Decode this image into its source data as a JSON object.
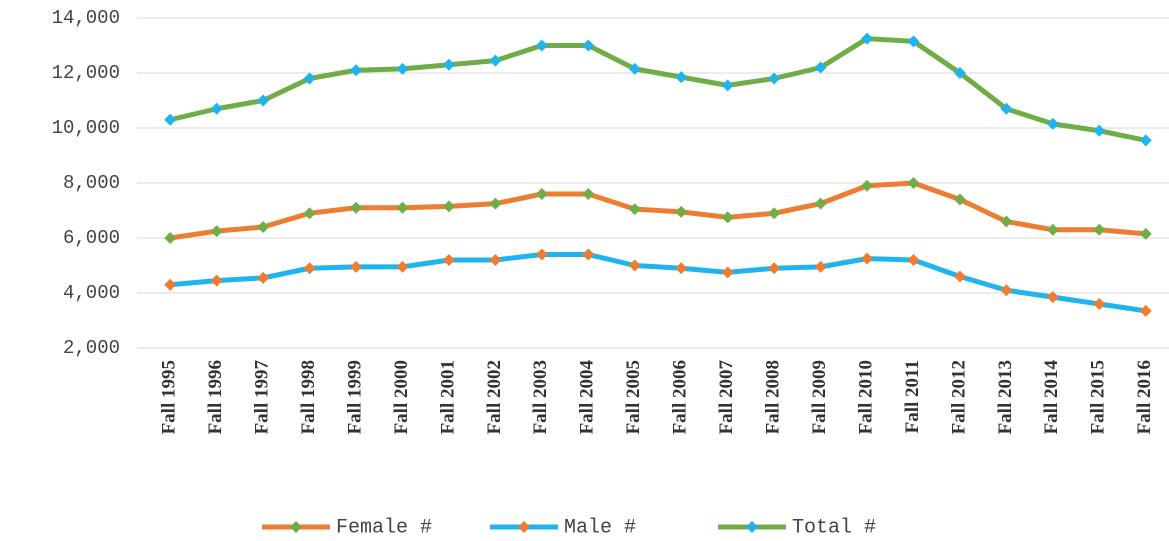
{
  "chart_data": {
    "type": "line",
    "categories": [
      "Fall 1995",
      "Fall 1996",
      "Fall 1997",
      "Fall 1998",
      "Fall 1999",
      "Fall 2000",
      "Fall 2001",
      "Fall 2002",
      "Fall 2003",
      "Fall 2004",
      "Fall 2005",
      "Fall 2006",
      "Fall 2007",
      "Fall 2008",
      "Fall 2009",
      "Fall 2010",
      "Fall 2011",
      "Fall 2012",
      "Fall 2013",
      "Fall 2014",
      "Fall 2015",
      "Fall 2016"
    ],
    "series": [
      {
        "name": "Female #",
        "color": "#ED7D31",
        "marker_color": "#70AD47",
        "values": [
          6000,
          6250,
          6400,
          6900,
          7100,
          7100,
          7150,
          7250,
          7600,
          7600,
          7050,
          6950,
          6750,
          6900,
          7250,
          7900,
          8000,
          7400,
          6600,
          6300,
          6300,
          6150
        ]
      },
      {
        "name": "Male #",
        "color": "#1FB4EE",
        "marker_color": "#ED7D31",
        "values": [
          4300,
          4450,
          4550,
          4900,
          4950,
          4950,
          5200,
          5200,
          5400,
          5400,
          5000,
          4900,
          4750,
          4900,
          4950,
          5250,
          5200,
          4600,
          4100,
          3850,
          3600,
          3350
        ]
      },
      {
        "name": "Total #",
        "color": "#70AD47",
        "marker_color": "#1FB4EE",
        "values": [
          10300,
          10700,
          11000,
          11800,
          12100,
          12150,
          12300,
          12450,
          13000,
          13000,
          12150,
          11850,
          11550,
          11800,
          12200,
          13250,
          13150,
          12000,
          10700,
          10150,
          9900,
          9550
        ]
      }
    ],
    "ylim": [
      2000,
      14000
    ],
    "yticks": [
      {
        "value": 2000,
        "label": "2,000"
      },
      {
        "value": 4000,
        "label": "4,000"
      },
      {
        "value": 6000,
        "label": "6,000"
      },
      {
        "value": 8000,
        "label": "8,000"
      },
      {
        "value": 10000,
        "label": "10,000"
      },
      {
        "value": 12000,
        "label": "12,000"
      },
      {
        "value": 14000,
        "label": "14,000"
      }
    ],
    "grid": true,
    "legend": "bottom"
  }
}
